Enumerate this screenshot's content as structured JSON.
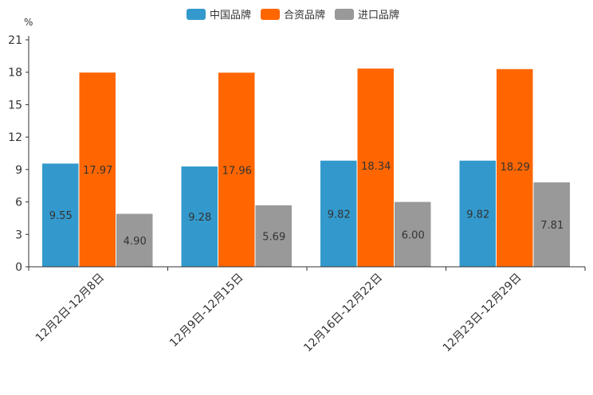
{
  "chart_data": {
    "type": "bar",
    "title": "",
    "unit": "%",
    "categories": [
      "12月2日-12月8日",
      "12月9日-12月15日",
      "12月16日-12月22日",
      "12月23日-12月29日"
    ],
    "series": [
      {
        "name": "中国品牌",
        "color": "#3399cc",
        "values": [
          9.55,
          9.28,
          9.82,
          9.82
        ],
        "labels": [
          "9.55",
          "9.28",
          "9.82",
          "9.82"
        ]
      },
      {
        "name": "合资品牌",
        "color": "#ff6600",
        "values": [
          17.97,
          17.96,
          18.34,
          18.29
        ],
        "labels": [
          "17.97",
          "17.96",
          "18.34",
          "18.29"
        ]
      },
      {
        "name": "进口品牌",
        "color": "#999999",
        "values": [
          4.9,
          5.69,
          6.0,
          7.81
        ],
        "labels": [
          "4.90",
          "5.69",
          "6.00",
          "7.81"
        ]
      }
    ],
    "yticks": [
      "0",
      "3",
      "6",
      "9",
      "12",
      "15",
      "18",
      "21"
    ],
    "ylim": [
      0,
      21
    ],
    "xlabel": "",
    "ylabel": "%",
    "legend": "top-center",
    "grid": false
  }
}
